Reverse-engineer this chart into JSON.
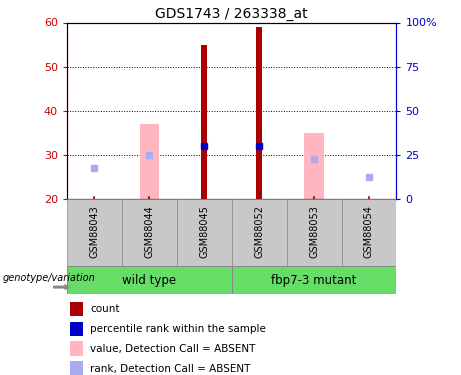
{
  "title": "GDS1743 / 263338_at",
  "samples": [
    "GSM88043",
    "GSM88044",
    "GSM88045",
    "GSM88052",
    "GSM88053",
    "GSM88054"
  ],
  "ylim_left": [
    20,
    60
  ],
  "yticks_left": [
    20,
    30,
    40,
    50,
    60
  ],
  "yticks_right": [
    0,
    25,
    50,
    75,
    100
  ],
  "ytick_right_labels": [
    "0",
    "25",
    "50",
    "75",
    "100%"
  ],
  "bar_color_dark_red": "#AA0000",
  "bar_color_pink": "#FFB6C1",
  "dot_color_blue": "#0000CC",
  "dot_color_light_blue": "#AAAAEE",
  "value_bars": {
    "GSM88043": {
      "rank_absent": 27
    },
    "GSM88044": {
      "absent_value": 37,
      "rank_absent": 30
    },
    "GSM88045": {
      "count": 55,
      "rank_count": 32
    },
    "GSM88052": {
      "count": 59,
      "rank_count": 32
    },
    "GSM88053": {
      "absent_value": 35,
      "rank_absent": 29
    },
    "GSM88054": {
      "rank_absent": 25
    }
  },
  "bar_bottom": 20,
  "background_color": "#FFFFFF",
  "plot_bg_color": "#FFFFFF",
  "label_color_left": "#CC0000",
  "label_color_right": "#0000CC",
  "sample_box_color": "#C8C8C8",
  "group_green": "#66DD66",
  "genotype_label": "genotype/variation",
  "group_info": [
    {
      "name": "wild type",
      "start": 0,
      "end": 2
    },
    {
      "name": "fbp7-3 mutant",
      "start": 3,
      "end": 5
    }
  ],
  "legend_items": [
    {
      "label": "count",
      "color": "#AA0000"
    },
    {
      "label": "percentile rank within the sample",
      "color": "#0000CC"
    },
    {
      "label": "value, Detection Call = ABSENT",
      "color": "#FFB6C1"
    },
    {
      "label": "rank, Detection Call = ABSENT",
      "color": "#AAAAEE"
    }
  ]
}
